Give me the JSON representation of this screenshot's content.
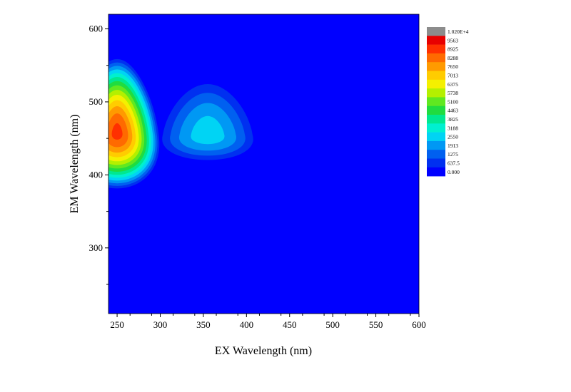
{
  "chart_data": {
    "type": "heatmap",
    "title": "",
    "xlabel": "EX Wavelength (nm)",
    "ylabel": "EM Wavelength (nm)",
    "xlim": [
      240,
      600
    ],
    "ylim": [
      210,
      620
    ],
    "x_ticks": [
      250,
      300,
      350,
      400,
      450,
      500,
      550,
      600
    ],
    "y_ticks": [
      300,
      400,
      500,
      600
    ],
    "grid": false,
    "legend_position": "right",
    "colorbar": {
      "levels": [
        {
          "label": "1.020E+4",
          "value": 10200,
          "color": "#8c8c8c"
        },
        {
          "label": "9563",
          "value": 9563,
          "color": "#e80000"
        },
        {
          "label": "8925",
          "value": 8925,
          "color": "#ff3000"
        },
        {
          "label": "8288",
          "value": 8288,
          "color": "#ff6a00"
        },
        {
          "label": "7650",
          "value": 7650,
          "color": "#ff9a00"
        },
        {
          "label": "7013",
          "value": 7013,
          "color": "#ffcc00"
        },
        {
          "label": "6375",
          "value": 6375,
          "color": "#f4f000"
        },
        {
          "label": "5738",
          "value": 5738,
          "color": "#b4f000"
        },
        {
          "label": "5100",
          "value": 5100,
          "color": "#60e820"
        },
        {
          "label": "4463",
          "value": 4463,
          "color": "#20dc40"
        },
        {
          "label": "3825",
          "value": 3825,
          "color": "#00e890"
        },
        {
          "label": "3188",
          "value": 3188,
          "color": "#00f0d0"
        },
        {
          "label": "2550",
          "value": 2550,
          "color": "#00d4f4"
        },
        {
          "label": "1913",
          "value": 1913,
          "color": "#0098f4"
        },
        {
          "label": "1275",
          "value": 1275,
          "color": "#0060f0"
        },
        {
          "label": "637.5",
          "value": 637.5,
          "color": "#0030f0"
        },
        {
          "label": "0.000",
          "value": 0,
          "color": "#0000ff"
        }
      ]
    },
    "peaks": [
      {
        "ex": 250,
        "em": 458,
        "intensity": 9200
      },
      {
        "ex": 355,
        "em": 455,
        "intensity": 3000
      }
    ]
  }
}
